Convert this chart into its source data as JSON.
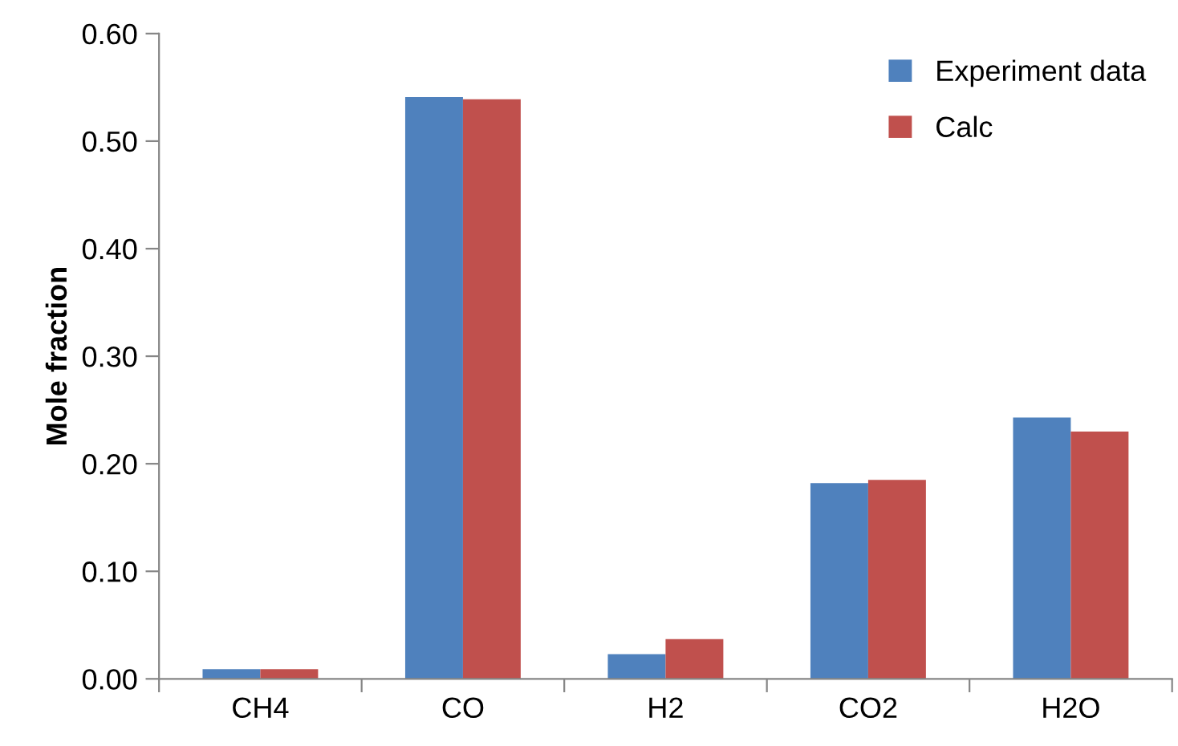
{
  "chart_data": {
    "type": "bar",
    "ylabel": "Mole fraction",
    "categories": [
      "CH4",
      "CO",
      "H2",
      "CO2",
      "H2O"
    ],
    "series": [
      {
        "name": "Experiment data",
        "color": "#4f81bd",
        "values": [
          0.009,
          0.541,
          0.023,
          0.182,
          0.243
        ]
      },
      {
        "name": "Calc",
        "color": "#c0504d",
        "values": [
          0.009,
          0.539,
          0.037,
          0.185,
          0.23
        ]
      }
    ],
    "ylim": [
      0,
      0.6
    ],
    "yticks": [
      {
        "value": 0,
        "label": "0.00"
      },
      {
        "value": 0.1,
        "label": "0.10"
      },
      {
        "value": 0.2,
        "label": "0.20"
      },
      {
        "value": 0.3,
        "label": "0.30"
      },
      {
        "value": 0.4,
        "label": "0.40"
      },
      {
        "value": 0.5,
        "label": "0.50"
      },
      {
        "value": 0.6,
        "label": "0.60"
      }
    ],
    "grid": false,
    "legend": "top right"
  }
}
